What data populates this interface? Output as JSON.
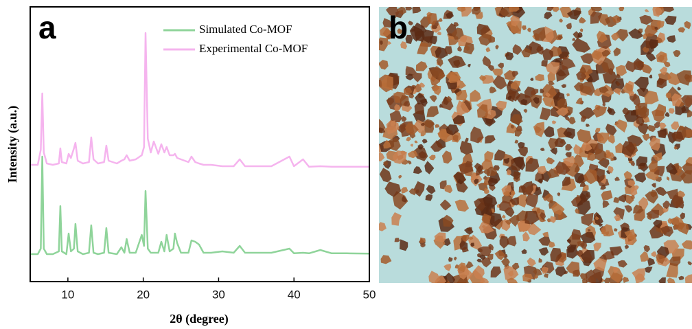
{
  "chart_data": {
    "type": "line",
    "panel_label": "a",
    "xlabel": "2θ (degree)",
    "ylabel": "Intensity (a.u.)",
    "xlim": [
      5,
      50
    ],
    "xticks": [
      10,
      20,
      30,
      40,
      50
    ],
    "ylim": [
      0,
      100
    ],
    "legend": "upper center",
    "x": [
      5,
      6,
      6.4,
      6.6,
      6.8,
      7.2,
      8,
      8.8,
      9,
      9.2,
      9.8,
      10.1,
      10.4,
      10.8,
      11,
      11.3,
      12,
      12.8,
      13.1,
      13.4,
      14,
      14.8,
      15.1,
      15.4,
      16.5,
      17.1,
      17.5,
      17.8,
      18.2,
      19,
      19.8,
      20.1,
      20.3,
      20.6,
      21,
      21.4,
      22,
      22.4,
      22.8,
      23.1,
      23.5,
      24,
      24.2,
      24.5,
      25,
      26,
      26.4,
      26.9,
      27.4,
      28,
      29,
      30.5,
      32,
      32.8,
      33.5,
      35.5,
      37,
      39.4,
      40,
      41.2,
      42,
      43.5,
      45,
      47,
      50
    ],
    "series": [
      {
        "name": "Simulated Co-MOF",
        "color": "#8fd49a",
        "values": [
          10,
          10,
          12,
          45.5,
          12,
          10,
          10,
          11,
          27.5,
          11,
          10,
          17.5,
          11,
          12,
          21,
          11,
          10,
          10.5,
          20.5,
          10.5,
          10,
          10.5,
          19.5,
          10.5,
          10,
          12.5,
          10.5,
          15.5,
          10.5,
          10.5,
          17,
          13,
          33,
          12,
          10.5,
          10.5,
          10.5,
          14.5,
          11,
          17,
          11,
          12,
          17.5,
          14,
          10.5,
          10.5,
          15,
          14.5,
          13.5,
          10.5,
          10.5,
          11,
          10.5,
          13,
          10.5,
          10.5,
          10.5,
          12,
          10.3,
          10.5,
          10.3,
          11.5,
          10.3,
          10.3,
          10.2
        ]
      },
      {
        "name": "Experimental Co-MOF",
        "color": "#f5b4ee",
        "values": [
          42.5,
          42.5,
          48,
          68.5,
          47,
          43,
          42.5,
          43,
          48.5,
          43.5,
          43,
          46.5,
          45,
          48.5,
          50.5,
          44,
          43,
          43.5,
          52.5,
          44.5,
          43,
          43.5,
          49.5,
          44,
          43,
          44,
          44.5,
          46,
          44,
          44.5,
          46,
          49,
          90.5,
          52,
          47,
          51,
          46.5,
          50,
          47,
          49,
          46,
          46,
          46.5,
          45,
          44.5,
          43.5,
          45.5,
          43.5,
          43,
          42.5,
          42.5,
          42,
          42,
          44.5,
          42,
          42,
          42,
          45.5,
          42,
          44.5,
          41.8,
          42,
          41.8,
          41.8,
          41.8
        ]
      }
    ]
  },
  "image_panel": {
    "label": "b"
  }
}
